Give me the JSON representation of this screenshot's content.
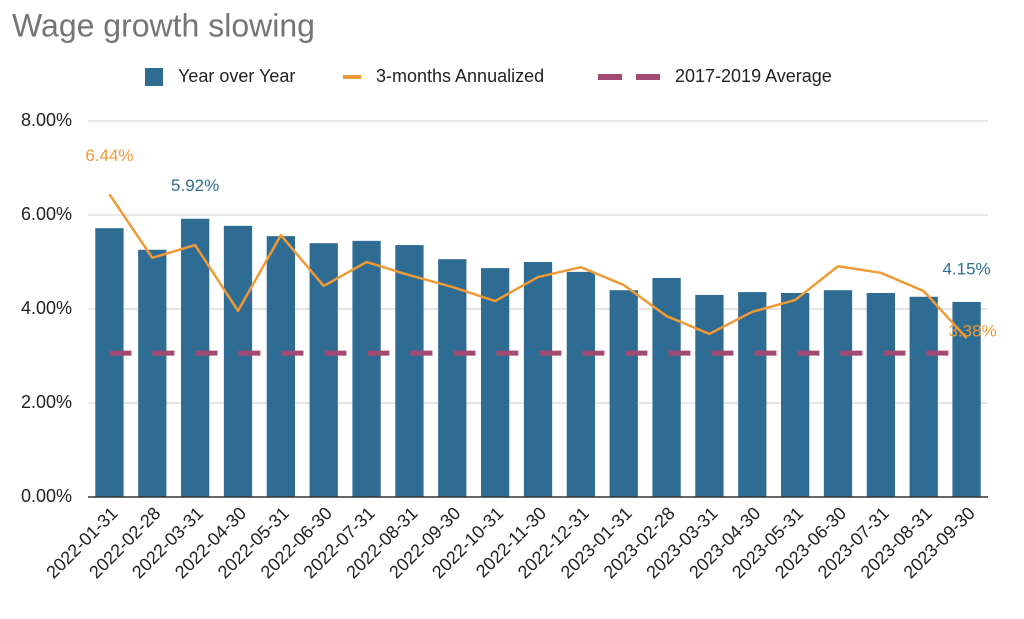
{
  "chart_data": {
    "type": "combo",
    "title": "Wage growth slowing",
    "categories": [
      "2022-01-31",
      "2022-02-28",
      "2022-03-31",
      "2022-04-30",
      "2022-05-31",
      "2022-06-30",
      "2022-07-31",
      "2022-08-31",
      "2022-09-30",
      "2022-10-31",
      "2022-11-30",
      "2022-12-31",
      "2023-01-31",
      "2023-02-28",
      "2023-03-31",
      "2023-04-30",
      "2023-05-31",
      "2023-06-30",
      "2023-07-31",
      "2023-08-31",
      "2023-09-30"
    ],
    "series": [
      {
        "name": "Year over Year",
        "type": "bar",
        "color": "#2f6c93",
        "values": [
          5.72,
          5.26,
          5.92,
          5.77,
          5.55,
          5.4,
          5.45,
          5.36,
          5.06,
          4.87,
          5.0,
          4.79,
          4.4,
          4.66,
          4.3,
          4.36,
          4.34,
          4.4,
          4.34,
          4.26,
          4.15
        ],
        "value_labels": [
          null,
          null,
          "5.92%",
          null,
          null,
          null,
          null,
          null,
          null,
          null,
          null,
          null,
          null,
          null,
          null,
          null,
          null,
          null,
          null,
          null,
          "4.15%"
        ]
      },
      {
        "name": "3-months Annualized",
        "type": "line",
        "color": "#f09a36",
        "values": [
          6.44,
          5.09,
          5.36,
          3.96,
          5.57,
          4.49,
          5.0,
          4.72,
          4.47,
          4.17,
          4.68,
          4.89,
          4.51,
          3.85,
          3.47,
          3.94,
          4.19,
          4.91,
          4.77,
          4.38,
          3.38
        ],
        "value_labels": [
          "6.44%",
          null,
          null,
          null,
          null,
          null,
          null,
          null,
          null,
          null,
          null,
          null,
          null,
          null,
          null,
          null,
          null,
          null,
          null,
          null,
          "3.38%"
        ]
      },
      {
        "name": "2017-2019 Average",
        "type": "dashed",
        "color": "#a34a72",
        "value": 3.06
      }
    ],
    "ylim": [
      0,
      8
    ],
    "yticks": [
      {
        "value": 0,
        "label": "0.00%"
      },
      {
        "value": 2,
        "label": "2.00%"
      },
      {
        "value": 4,
        "label": "4.00%"
      },
      {
        "value": 6,
        "label": "6.00%"
      },
      {
        "value": 8,
        "label": "8.00%"
      }
    ],
    "grid": true,
    "legend": "top"
  }
}
